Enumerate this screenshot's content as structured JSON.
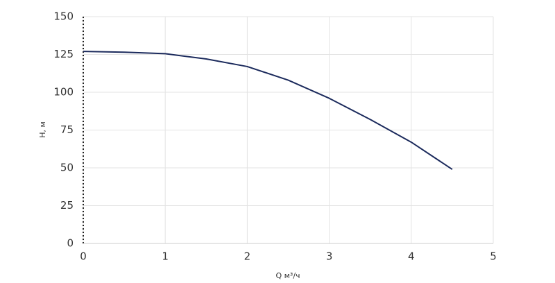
{
  "chart_data": {
    "type": "line",
    "x_label": "Q м³/ч",
    "y_label": "H, м",
    "x": [
      0,
      0.5,
      1,
      1.5,
      2,
      2.5,
      3,
      3.5,
      4,
      4.5
    ],
    "series": [
      {
        "color": "#1b2a5c",
        "values": [
          127,
          126.5,
          125.5,
          122,
          117,
          108,
          96,
          82,
          67,
          49
        ]
      }
    ],
    "xlim": [
      0,
      5
    ],
    "xticks": [
      0,
      1,
      2,
      3,
      4,
      5
    ],
    "ylim": [
      0,
      150
    ],
    "yticks": [
      0,
      25,
      50,
      75,
      100,
      125,
      150
    ],
    "grid": true
  }
}
